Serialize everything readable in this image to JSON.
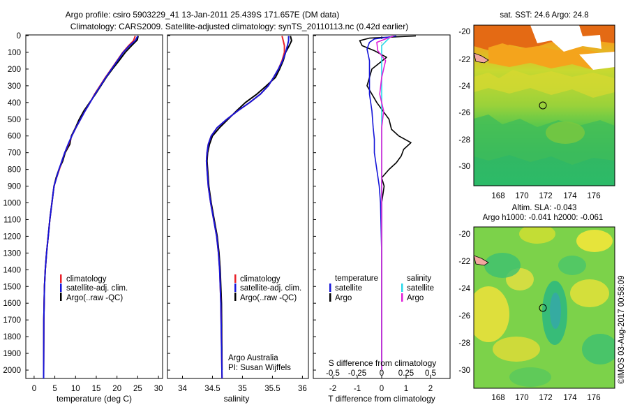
{
  "title_line1": "Argo profile: csiro 5903229_41 13-Jan-2011 25.439S 171.657E (DM data)",
  "title_line2": "Climatology: CARS2009. Satellite-adjusted climatology: synTS_20110113.nc (0.42d earlier)",
  "colors": {
    "climatology": "#e8212a",
    "satellite": "#1515d8",
    "argo": "#000000",
    "sal_satellite": "#28d8ea",
    "sal_argo": "#e020d8"
  },
  "chart_data": [
    {
      "type": "line",
      "id": "temperature",
      "xlabel": "temperature (deg C)",
      "xlim": [
        -2,
        31
      ],
      "xticks": [
        0,
        5,
        10,
        15,
        20,
        25,
        30
      ],
      "ylim": [
        0,
        2050
      ],
      "yticks": [
        0,
        100,
        200,
        300,
        400,
        500,
        600,
        700,
        800,
        900,
        1000,
        1100,
        1200,
        1300,
        1400,
        1500,
        1600,
        1700,
        1800,
        1900,
        2000
      ],
      "legend": [
        "climatology",
        "satellite-adj. clim.",
        "Argo(..raw -QC)"
      ],
      "series": [
        {
          "name": "climatology",
          "x": [
            24.4,
            24.0,
            22.8,
            21.4,
            20.0,
            18.6,
            17.2,
            15.9,
            14.6,
            13.5,
            12.3,
            11.2,
            10.1,
            9.1,
            8.3,
            7.4,
            6.7,
            6.1,
            5.4,
            4.8,
            4.3,
            3.8,
            3.4,
            3.0,
            2.7,
            2.5,
            2.35,
            2.3
          ],
          "depth": [
            2,
            30,
            60,
            100,
            150,
            200,
            250,
            300,
            350,
            400,
            450,
            500,
            550,
            600,
            650,
            700,
            750,
            800,
            850,
            900,
            1000,
            1100,
            1200,
            1300,
            1400,
            1500,
            1700,
            2050
          ]
        },
        {
          "name": "satellite-adj. clim.",
          "x": [
            25.0,
            24.4,
            23.0,
            21.5,
            20.1,
            18.7,
            17.3,
            16.0,
            14.7,
            13.5,
            12.3,
            11.2,
            10.1,
            9.1,
            8.2,
            7.4,
            6.7,
            6.0,
            5.4,
            4.8,
            4.3,
            3.8,
            3.4,
            3.0,
            2.7,
            2.5,
            2.35,
            2.3
          ],
          "depth": [
            2,
            30,
            60,
            100,
            150,
            200,
            250,
            300,
            350,
            400,
            450,
            500,
            550,
            600,
            650,
            700,
            750,
            800,
            850,
            900,
            1000,
            1100,
            1200,
            1300,
            1400,
            1500,
            1700,
            2050
          ]
        },
        {
          "name": "Argo(..raw -QC)",
          "x": [
            25.1,
            24.9,
            23.5,
            22.0,
            20.5,
            18.9,
            17.4,
            16.1,
            14.8,
            13.4,
            12.0,
            10.9,
            10.0,
            9.0,
            8.6,
            7.5,
            6.9,
            6.0,
            5.3,
            4.8,
            4.3,
            3.8,
            3.4,
            3.0,
            2.7,
            2.5,
            2.35,
            2.3
          ],
          "depth": [
            2,
            25,
            60,
            100,
            150,
            200,
            250,
            300,
            350,
            400,
            450,
            500,
            550,
            600,
            650,
            700,
            750,
            800,
            850,
            900,
            1000,
            1100,
            1200,
            1300,
            1400,
            1500,
            1700,
            2000
          ]
        }
      ]
    },
    {
      "type": "line",
      "id": "salinity",
      "xlabel": "salinity",
      "xlim": [
        33.75,
        36.1
      ],
      "xticks": [
        34,
        34.5,
        35,
        35.5,
        36
      ],
      "ylim": [
        0,
        2050
      ],
      "legend": [
        "climatology",
        "satellite-adj. clim.",
        "Argo(..raw -QC)"
      ],
      "series": [
        {
          "name": "climatology",
          "x": [
            35.66,
            35.68,
            35.7,
            35.7,
            35.66,
            35.6,
            35.52,
            35.43,
            35.3,
            35.12,
            34.92,
            34.74,
            34.58,
            34.48,
            34.43,
            34.41,
            34.4,
            34.41,
            34.43,
            34.47,
            34.52,
            34.57,
            34.6,
            34.62,
            34.64,
            34.66
          ],
          "depth": [
            2,
            30,
            60,
            100,
            150,
            200,
            250,
            300,
            350,
            400,
            450,
            500,
            550,
            600,
            650,
            700,
            750,
            800,
            900,
            1000,
            1100,
            1200,
            1300,
            1400,
            1600,
            2050
          ]
        },
        {
          "name": "satellite-adj. clim.",
          "x": [
            35.77,
            35.77,
            35.75,
            35.72,
            35.67,
            35.6,
            35.52,
            35.43,
            35.3,
            35.12,
            34.92,
            34.74,
            34.58,
            34.48,
            34.43,
            34.41,
            34.4,
            34.41,
            34.43,
            34.47,
            34.52,
            34.57,
            34.6,
            34.62,
            34.64,
            34.66
          ],
          "depth": [
            2,
            30,
            60,
            100,
            150,
            200,
            250,
            300,
            350,
            400,
            450,
            500,
            550,
            600,
            650,
            700,
            750,
            800,
            900,
            1000,
            1100,
            1200,
            1300,
            1400,
            1600,
            2050
          ]
        },
        {
          "name": "Argo(..raw -QC)",
          "x": [
            35.8,
            35.82,
            35.78,
            35.72,
            35.68,
            35.62,
            35.55,
            35.4,
            35.24,
            35.05,
            34.9,
            34.76,
            34.62,
            34.5,
            34.45,
            34.42,
            34.41,
            34.42,
            34.44,
            34.48,
            34.53,
            34.58,
            34.61,
            34.63,
            34.65,
            34.66
          ],
          "depth": [
            2,
            30,
            60,
            100,
            150,
            200,
            250,
            300,
            350,
            400,
            450,
            500,
            550,
            600,
            650,
            700,
            750,
            800,
            900,
            1000,
            1100,
            1200,
            1300,
            1400,
            1600,
            2000
          ]
        }
      ]
    },
    {
      "type": "line",
      "id": "differences",
      "xlabel": "T difference from climatology",
      "xlabel2": "S difference from climatology",
      "xlim": [
        -2.8,
        2.8
      ],
      "xticks": [
        -2,
        -1,
        0,
        1,
        2
      ],
      "xticks_top": [
        -0.5,
        -0.25,
        0,
        0.25,
        0.5
      ],
      "ylim": [
        0,
        2050
      ],
      "legend_title_t": "temperature",
      "legend_title_s": "salinity",
      "legend_t": [
        "satellite",
        "Argo"
      ],
      "legend_s": [
        "satellite",
        "Argo"
      ],
      "series": [
        {
          "name": "temperature satellite",
          "x": [
            0.6,
            -0.3,
            -0.5,
            -0.6,
            -0.5,
            -0.5,
            -0.5,
            -0.4,
            -0.35,
            -0.3,
            -0.3,
            -0.2,
            -0.1,
            -0.05,
            0,
            0,
            0
          ],
          "depth": [
            2,
            20,
            40,
            80,
            150,
            250,
            350,
            450,
            550,
            620,
            700,
            800,
            900,
            1000,
            1300,
            1600,
            2000
          ]
        },
        {
          "name": "temperature Argo",
          "x": [
            1.4,
            -0.5,
            -0.9,
            -0.8,
            -0.3,
            0.2,
            -0.4,
            -0.6,
            -0.2,
            0.3,
            0.4,
            0.7,
            1.2,
            0.9,
            0.8,
            0.6,
            0.3,
            0,
            0.1,
            0,
            0,
            0,
            0
          ],
          "depth": [
            2,
            15,
            30,
            60,
            90,
            130,
            200,
            300,
            400,
            500,
            560,
            600,
            640,
            680,
            720,
            760,
            800,
            850,
            900,
            1000,
            1300,
            1600,
            2000
          ]
        },
        {
          "name": "salinity satellite",
          "x": [
            0.1,
            0.05,
            0.0,
            0.0,
            0.0,
            0.0,
            0.0,
            0.0,
            0.0,
            0.0,
            0.0
          ],
          "depth": [
            2,
            30,
            60,
            100,
            150,
            250,
            400,
            600,
            900,
            1400,
            2000
          ]
        },
        {
          "name": "salinity Argo",
          "x": [
            0.12,
            -0.05,
            -0.04,
            0.04,
            0.0,
            -0.02,
            0.02,
            0.0,
            0.0,
            0.0,
            0.0
          ],
          "depth": [
            2,
            40,
            90,
            150,
            250,
            350,
            450,
            550,
            700,
            1000,
            2000
          ]
        }
      ]
    }
  ],
  "credit_line1": "Argo Australia",
  "credit_line2": "PI: Susan Wijffels",
  "maps": {
    "sst_title": "sat. SST: 24.6  Argo: 24.8",
    "sla_title1": "Altim. SLA: -0.043",
    "sla_title2": "Argo h1000: -0.041  h2000: -0.061",
    "lat_ticks": [
      "-20",
      "-22",
      "-24",
      "-26",
      "-28",
      "-30"
    ],
    "lon_ticks": [
      "168",
      "170",
      "172",
      "174",
      "176"
    ],
    "profile_marker": {
      "lon": 171.657,
      "lat": -25.439
    }
  },
  "stamp": "©IMOS 03-Aug-2017 00:58:09"
}
